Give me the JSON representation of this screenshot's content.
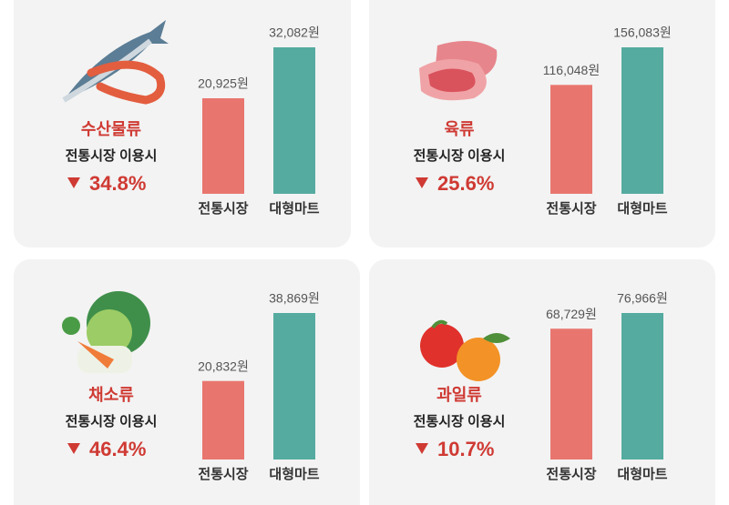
{
  "chart_data": [
    {
      "type": "bar",
      "title": "수산물류",
      "subtitle": "전통시장 이용시",
      "change": "34.8%",
      "categories": [
        "전통시장",
        "대형마트"
      ],
      "values": [
        20925,
        32082
      ],
      "value_labels": [
        "20,925원",
        "32,082원"
      ],
      "colors": [
        "#e8766f",
        "#55aba0"
      ]
    },
    {
      "type": "bar",
      "title": "육류",
      "subtitle": "전통시장 이용시",
      "change": "25.6%",
      "categories": [
        "전통시장",
        "대형마트"
      ],
      "values": [
        116048,
        156083
      ],
      "value_labels": [
        "116,048원",
        "156,083원"
      ],
      "colors": [
        "#e8766f",
        "#55aba0"
      ]
    },
    {
      "type": "bar",
      "title": "채소류",
      "subtitle": "전통시장 이용시",
      "change": "46.4%",
      "categories": [
        "전통시장",
        "대형마트"
      ],
      "values": [
        20832,
        38869
      ],
      "value_labels": [
        "20,832원",
        "38,869원"
      ],
      "colors": [
        "#e8766f",
        "#55aba0"
      ]
    },
    {
      "type": "bar",
      "title": "과일류",
      "subtitle": "전통시장 이용시",
      "change": "10.7%",
      "categories": [
        "전통시장",
        "대형마트"
      ],
      "values": [
        68729,
        76966
      ],
      "value_labels": [
        "68,729원",
        "76,966원"
      ],
      "colors": [
        "#e8766f",
        "#55aba0"
      ]
    }
  ]
}
